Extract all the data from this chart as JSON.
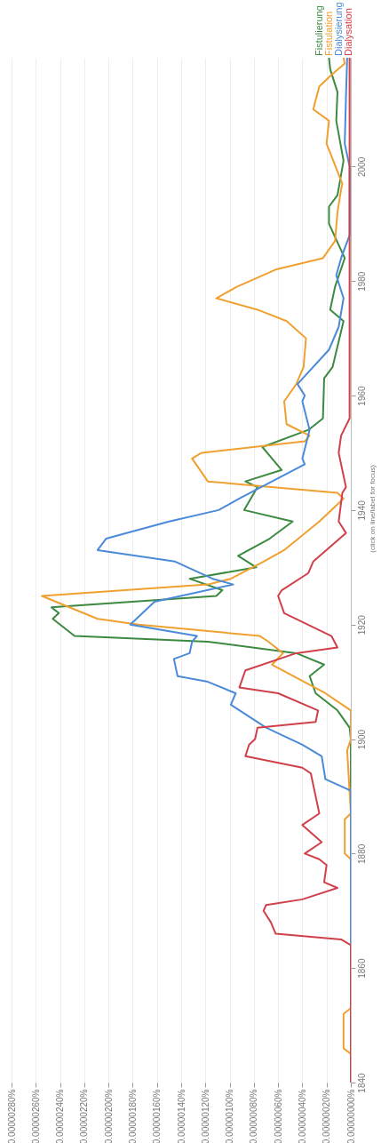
{
  "chart_data": {
    "type": "line",
    "ylim": [
      1840,
      2019
    ],
    "yticks": [
      1840,
      1860,
      1880,
      1900,
      1920,
      1940,
      1960,
      1980,
      2000
    ],
    "xlim": [
      2.8e-06,
      0
    ],
    "xticks": [
      {
        "value": 0,
        "label": "0.00000000%"
      },
      {
        "value": 2e-07,
        "label": "0.00000020%"
      },
      {
        "value": 4e-07,
        "label": "0.00000040%"
      },
      {
        "value": 6e-07,
        "label": "0.00000060%"
      },
      {
        "value": 8e-07,
        "label": "0.00000080%"
      },
      {
        "value": 1e-06,
        "label": "0.00000100%"
      },
      {
        "value": 1.2e-06,
        "label": "0.00000120%"
      },
      {
        "value": 1.4e-06,
        "label": "0.00000140%"
      },
      {
        "value": 1.6e-06,
        "label": "0.00000160%"
      },
      {
        "value": 1.8e-06,
        "label": "0.00000180%"
      },
      {
        "value": 2e-06,
        "label": "0.00000200%"
      },
      {
        "value": 2.2e-06,
        "label": "0.00000220%"
      },
      {
        "value": 2.4e-06,
        "label": "0.00000240%"
      },
      {
        "value": 2.6e-06,
        "label": "0.00000260%"
      },
      {
        "value": 2.8e-06,
        "label": "0.00000280%"
      }
    ],
    "grid": "x",
    "marker": "none",
    "line_style": "solid",
    "annotations": [
      "(click on line/label for focus)"
    ],
    "series": [
      {
        "name": "Fistulierung",
        "color": "#3c8a40",
        "values": [
          1840,
          1900,
          1902,
          1905,
          1908,
          1911,
          1913,
          1915,
          1917,
          1918,
          1921,
          1922,
          1923,
          1925,
          1926,
          1928,
          1930,
          1932,
          1935,
          1938,
          1940,
          1944,
          1945,
          1947,
          1951,
          1954,
          1956,
          1963,
          1965,
          1973,
          1975,
          1979,
          1984,
          1990,
          1993,
          1995,
          2001,
          2008,
          2013,
          2017,
          2019
        ],
        "x": [
          0,
          0,
          1e-08,
          1.1e-07,
          2.9e-07,
          3.4e-07,
          2.2e-07,
          4.5e-07,
          1.18e-06,
          2.28e-06,
          2.46e-06,
          2.41e-06,
          2.47e-06,
          1.11e-06,
          1.06e-06,
          1.33e-06,
          7.8e-07,
          9.3e-07,
          6.7e-07,
          4.8e-07,
          8.8e-07,
          7.7e-07,
          8.7e-07,
          5.7e-07,
          7.3e-07,
          3.5e-07,
          2.3e-07,
          2.2e-07,
          1.5e-07,
          6e-08,
          1.7e-07,
          1.3e-07,
          5e-08,
          1.8e-07,
          1.8e-07,
          1.1e-07,
          6e-08,
          1.2e-07,
          1.1e-07,
          1.7e-07,
          1.8e-07
        ]
      },
      {
        "name": "Fistulation",
        "color": "#f0a030",
        "values": [
          1840,
          1845,
          1846,
          1852,
          1853,
          1879,
          1880,
          1886,
          1887,
          1898,
          1900,
          1905,
          1908,
          1913,
          1915,
          1917,
          1918,
          1920,
          1921,
          1925,
          1927,
          1928,
          1931,
          1933,
          1938,
          1942,
          1943,
          1945,
          1949,
          1950,
          1952,
          1953,
          1955,
          1959,
          1962,
          1965,
          1970,
          1973,
          1975,
          1977,
          1979,
          1982,
          1984,
          1987,
          1992,
          1996,
          1997,
          2004,
          2008,
          2010,
          2014,
          2016,
          2018,
          2019
        ],
        "x": [
          0,
          0,
          6e-08,
          6e-08,
          0,
          0,
          5e-08,
          5e-08,
          0,
          3e-08,
          0,
          0,
          2.1e-07,
          6.5e-07,
          5.6e-07,
          6.8e-07,
          7.5e-07,
          1.75e-06,
          2.09e-06,
          2.55e-06,
          1.18e-06,
          9.9e-07,
          7.2e-07,
          5.5e-07,
          2.6e-07,
          6e-08,
          1.1e-07,
          1.18e-06,
          1.31e-06,
          1.23e-06,
          3.8e-07,
          3.4e-07,
          5.3e-07,
          5.5e-07,
          4.5e-07,
          3.9e-07,
          3.7e-07,
          5.3e-07,
          7.7e-07,
          1.11e-06,
          9.4e-07,
          6.2e-07,
          2.3e-07,
          1.3e-07,
          1.1e-07,
          8e-08,
          7e-08,
          2e-07,
          1.8e-07,
          3.1e-07,
          2.6e-07,
          1.6e-07,
          5e-08,
          6e-08
        ]
      },
      {
        "name": "Dialysierung",
        "color": "#4a8ad8",
        "values": [
          1840,
          1891,
          1893,
          1897,
          1899,
          1902,
          1906,
          1908,
          1910,
          1911,
          1914,
          1915,
          1917,
          1918,
          1920,
          1924,
          1927,
          1928,
          1931,
          1933,
          1935,
          1938,
          1940,
          1942,
          1948,
          1949,
          1954,
          1959,
          1960,
          1962,
          1968,
          1972,
          1977,
          1981,
          1984,
          1988,
          2000,
          2004,
          2012,
          2019
        ],
        "x": [
          0,
          0,
          2.1e-07,
          2.4e-07,
          4e-07,
          7e-07,
          9.9e-07,
          9.5e-07,
          1.18e-06,
          1.43e-06,
          1.46e-06,
          1.33e-06,
          1.31e-06,
          1.27e-06,
          1.82e-06,
          1.62e-06,
          9.7e-07,
          1.14e-06,
          1.45e-06,
          2.09e-06,
          2.02e-06,
          1.5e-06,
          1.09e-06,
          9.2e-07,
          3.8e-07,
          4e-07,
          3.4e-07,
          4e-07,
          3.8e-07,
          4.4e-07,
          1.8e-07,
          1e-07,
          6e-08,
          1.2e-07,
          8e-08,
          1e-08,
          1e-08,
          5e-08,
          4e-08,
          3e-08
        ]
      },
      {
        "name": "Dialysation",
        "color": "#d0404a",
        "values": [
          1840,
          1864,
          1865,
          1866,
          1868,
          1870,
          1871,
          1872,
          1874,
          1875,
          1878,
          1879,
          1880,
          1882,
          1885,
          1887,
          1889,
          1894,
          1895,
          1897,
          1899,
          1900,
          1902,
          1903,
          1905,
          1908,
          1909,
          1912,
          1915,
          1916,
          1918,
          1922,
          1925,
          1926,
          1929,
          1931,
          1936,
          1938,
          1943,
          1944,
          1950,
          1953,
          1956,
          1970,
          2000,
          2019
        ],
        "x": [
          0,
          0,
          8e-08,
          6.2e-07,
          6.6e-07,
          7.2e-07,
          7e-07,
          4e-07,
          1.1e-07,
          2.2e-07,
          2e-07,
          2.6e-07,
          3.8e-07,
          2.4e-07,
          4e-07,
          2.6e-07,
          2.8e-07,
          3.3e-07,
          4e-07,
          8.7e-07,
          8.4e-07,
          7.9e-07,
          7.7e-07,
          2.9e-07,
          2.7e-07,
          6e-07,
          9.2e-07,
          8.7e-07,
          4.5e-07,
          1.1e-07,
          1.6e-07,
          5.5e-07,
          6e-07,
          5.7e-07,
          3.5e-07,
          3.1e-07,
          4e-08,
          1e-07,
          7e-08,
          4e-08,
          1e-07,
          8e-08,
          1e-08,
          1e-08,
          1e-08,
          1e-08
        ]
      }
    ]
  }
}
